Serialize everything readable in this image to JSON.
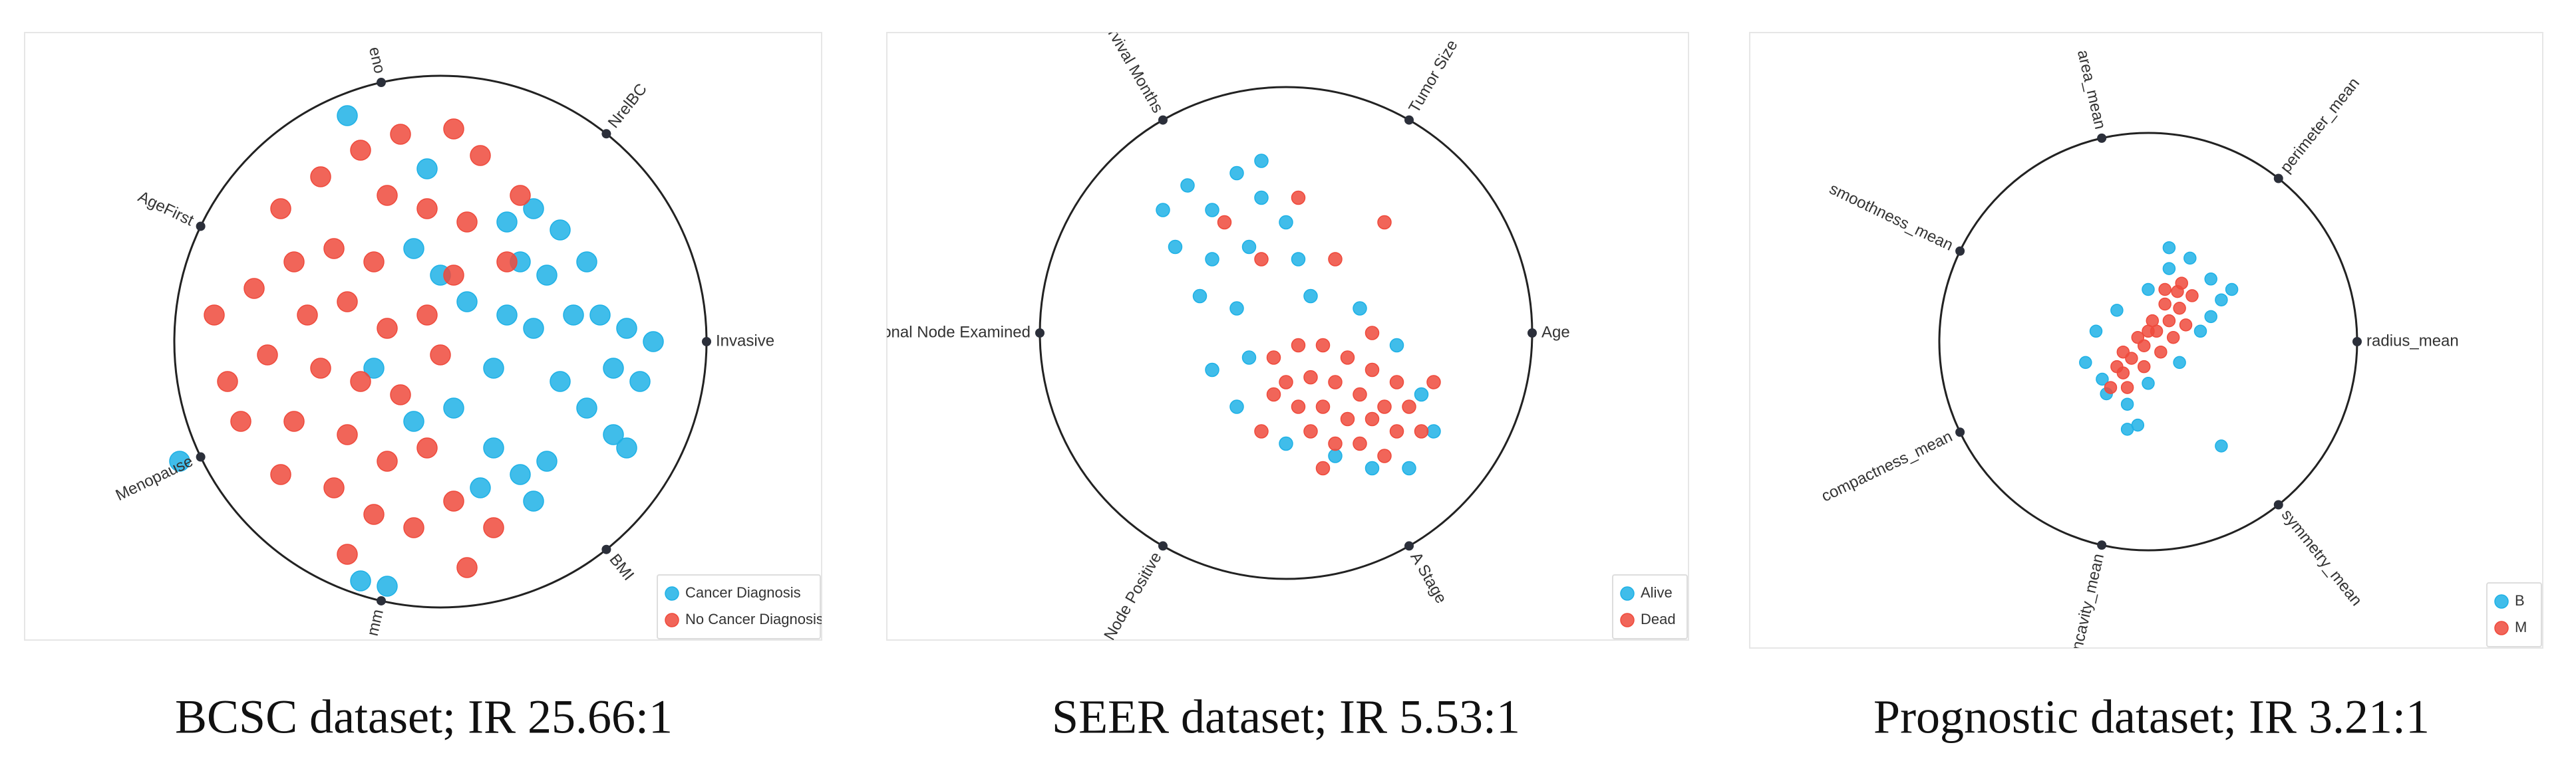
{
  "chart_data": [
    {
      "type": "radviz",
      "caption": "BCSC dataset; IR 25.66:1",
      "anchors": [
        "Invasive",
        "NrelBC",
        "eno",
        "AgeFirst",
        "Menopause",
        "mm",
        "BMI"
      ],
      "xlim": [
        -1,
        1
      ],
      "ylim": [
        -1,
        1
      ],
      "series": [
        {
          "name": "Cancer Diagnosis",
          "color": "#1eb1e6",
          "x": [
            0.25,
            0.35,
            0.45,
            0.3,
            0.4,
            0.55,
            0.5,
            0.6,
            0.7,
            0.8,
            0.65,
            0.75,
            0.55,
            0.65,
            0.7,
            0.45,
            0.35,
            0.25,
            0.2,
            0.1,
            0.0,
            -0.1,
            0.05,
            0.2,
            0.3,
            0.4,
            0.35,
            0.15,
            -0.1,
            -0.25,
            -0.05,
            -0.3,
            -0.2,
            -0.35,
            -0.98
          ],
          "y": [
            0.45,
            0.5,
            0.42,
            0.3,
            0.25,
            0.3,
            0.1,
            0.1,
            0.05,
            0.0,
            -0.1,
            -0.15,
            -0.25,
            -0.35,
            -0.4,
            -0.15,
            0.05,
            0.1,
            -0.1,
            0.15,
            0.25,
            0.35,
            -0.25,
            -0.4,
            -0.5,
            -0.45,
            -0.6,
            -0.55,
            -0.3,
            -0.1,
            0.65,
            -0.9,
            -0.92,
            0.85,
            -0.45
          ]
        },
        {
          "name": "No Cancer Diagnosis",
          "color": "#ef4a3c",
          "x": [
            -0.6,
            -0.45,
            -0.3,
            -0.15,
            0.05,
            0.15,
            -0.2,
            -0.05,
            0.1,
            -0.55,
            -0.4,
            -0.25,
            -0.7,
            -0.5,
            -0.35,
            -0.2,
            -0.05,
            -0.65,
            -0.45,
            -0.3,
            -0.15,
            0.0,
            -0.75,
            -0.55,
            -0.35,
            -0.2,
            -0.05,
            -0.6,
            -0.4,
            -0.25,
            -0.1,
            0.05,
            0.2,
            -0.35,
            0.1,
            0.3,
            0.05,
            -0.85,
            -0.8,
            0.25
          ],
          "y": [
            0.5,
            0.62,
            0.72,
            0.78,
            0.8,
            0.7,
            0.55,
            0.5,
            0.45,
            0.3,
            0.35,
            0.3,
            0.2,
            0.1,
            0.15,
            0.05,
            0.1,
            -0.05,
            -0.1,
            -0.15,
            -0.2,
            -0.05,
            -0.3,
            -0.3,
            -0.35,
            -0.45,
            -0.4,
            -0.5,
            -0.55,
            -0.65,
            -0.7,
            -0.6,
            -0.7,
            -0.8,
            -0.85,
            0.55,
            0.25,
            0.1,
            -0.15,
            0.3
          ]
        }
      ]
    },
    {
      "type": "radviz",
      "caption": "SEER dataset; IR 5.53:1",
      "anchors": [
        "Age",
        "Tumor Size",
        "rvival Months",
        "Regional Node Examined",
        "Regional Node Positive",
        "A Stage"
      ],
      "xlim": [
        -1,
        1
      ],
      "ylim": [
        -1,
        1
      ],
      "series": [
        {
          "name": "Alive",
          "color": "#1eb1e6",
          "x": [
            -0.5,
            -0.4,
            -0.3,
            -0.2,
            -0.1,
            0.0,
            -0.45,
            -0.3,
            -0.15,
            0.05,
            -0.35,
            -0.2,
            0.3,
            0.45,
            0.55,
            0.6,
            0.5,
            -0.15,
            -0.2,
            0.0,
            0.2,
            0.35,
            0.1,
            -0.1,
            -0.3
          ],
          "y": [
            0.5,
            0.6,
            0.5,
            0.65,
            0.55,
            0.45,
            0.35,
            0.3,
            0.35,
            0.3,
            0.15,
            0.1,
            0.1,
            -0.05,
            -0.25,
            -0.4,
            -0.55,
            -0.1,
            -0.3,
            -0.45,
            -0.5,
            -0.55,
            0.15,
            0.7,
            -0.15
          ]
        },
        {
          "name": "Dead",
          "color": "#ef4a3c",
          "x": [
            -0.05,
            0.05,
            0.15,
            0.25,
            0.35,
            0.45,
            0.0,
            0.1,
            0.2,
            0.3,
            0.4,
            0.5,
            0.55,
            0.05,
            0.15,
            0.25,
            0.35,
            0.45,
            0.1,
            0.2,
            0.3,
            0.4,
            -0.05,
            0.15,
            0.35,
            -0.1,
            0.05,
            -0.25,
            0.4,
            0.2,
            -0.1,
            0.6
          ],
          "y": [
            -0.1,
            -0.05,
            -0.05,
            -0.1,
            -0.15,
            -0.2,
            -0.2,
            -0.18,
            -0.2,
            -0.25,
            -0.3,
            -0.3,
            -0.4,
            -0.3,
            -0.3,
            -0.35,
            -0.35,
            -0.4,
            -0.4,
            -0.45,
            -0.45,
            -0.5,
            -0.25,
            -0.55,
            0.0,
            0.3,
            0.55,
            0.45,
            0.45,
            0.3,
            -0.4,
            -0.2
          ]
        }
      ]
    },
    {
      "type": "radviz",
      "caption": "Prognostic dataset; IR 3.21:1",
      "anchors": [
        "radius_mean",
        "perimeter_mean",
        "area_mean",
        "smoothness_mean",
        "compactness_mean",
        "ncavity_mean",
        "symmetry_mean"
      ],
      "xlim": [
        -1,
        1
      ],
      "ylim": [
        -1,
        1
      ],
      "series": [
        {
          "name": "B",
          "color": "#1eb1e6",
          "x": [
            -0.3,
            -0.25,
            -0.15,
            0.0,
            0.1,
            0.2,
            0.3,
            0.35,
            0.25,
            0.15,
            0.0,
            -0.1,
            -0.2,
            -0.05,
            -0.1,
            0.35,
            0.4,
            -0.22,
            0.3,
            0.1
          ],
          "y": [
            -0.1,
            0.05,
            0.15,
            0.25,
            0.35,
            0.4,
            0.3,
            0.2,
            0.05,
            -0.1,
            -0.2,
            -0.3,
            -0.25,
            -0.4,
            -0.42,
            -0.5,
            0.25,
            -0.18,
            0.12,
            0.45
          ]
        },
        {
          "name": "M",
          "color": "#ef4a3c",
          "x": [
            -0.18,
            -0.12,
            -0.08,
            -0.02,
            0.04,
            0.1,
            0.15,
            0.21,
            -0.12,
            -0.05,
            0.02,
            0.08,
            0.14,
            -0.1,
            -0.02,
            0.06,
            0.12,
            0.18,
            -0.15,
            0.0,
            0.08,
            0.16
          ],
          "y": [
            -0.22,
            -0.15,
            -0.08,
            -0.02,
            0.05,
            0.1,
            0.16,
            0.22,
            -0.05,
            0.02,
            0.1,
            0.18,
            0.24,
            -0.22,
            -0.12,
            -0.05,
            0.02,
            0.08,
            -0.12,
            0.05,
            0.25,
            0.28
          ]
        }
      ]
    }
  ]
}
